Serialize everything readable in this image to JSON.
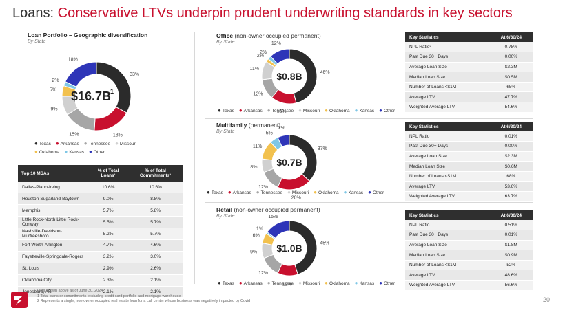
{
  "title": {
    "lead": "Loans:",
    "accent": "Conservative LTVs underpin prudent underwriting standards in key sectors"
  },
  "colors": {
    "Texas": "#2b2b2b",
    "Arkansas": "#c8102e",
    "Tennessee": "#a6a6a6",
    "Missouri": "#d0d0d0",
    "Oklahoma": "#f2c14e",
    "Kansas": "#7fc7e6",
    "Other": "#2e35b8",
    "accent": "#c8102e"
  },
  "portfolio": {
    "heading": "Loan Portfolio – Geographic diversification",
    "subheading": "By State",
    "center_value": "$16.7B",
    "center_sup": "1",
    "legend": [
      "Texas",
      "Arkansas",
      "Tennessee",
      "Missouri",
      "Oklahoma",
      "Kansas",
      "Other"
    ]
  },
  "msa_table": {
    "headers": [
      "Top 10 MSAs",
      "% of Total Loans¹",
      "% of Total Commitments¹"
    ],
    "rows": [
      [
        "Dallas-Plano-Irving",
        "10.6%",
        "10.6%"
      ],
      [
        "Houston-Sugarland-Baytown",
        "9.0%",
        "8.8%"
      ],
      [
        "Memphis",
        "5.7%",
        "5.8%"
      ],
      [
        "Little Rock-North Little Rock-Conway",
        "5.5%",
        "5.7%"
      ],
      [
        "Nashville-Davidson-Murfreesboro",
        "5.2%",
        "5.7%"
      ],
      [
        "Fort Worth-Arlington",
        "4.7%",
        "4.6%"
      ],
      [
        "Fayetteville-Springdale-Rogers",
        "3.2%",
        "3.0%"
      ],
      [
        "St. Louis",
        "2.9%",
        "2.6%"
      ],
      [
        "Oklahoma City",
        "2.3%",
        "2.1%"
      ],
      [
        "Jonesboro, AR",
        "2.1%",
        "2.1%"
      ]
    ]
  },
  "office": {
    "heading": "Office",
    "heading_light": "(non-owner occupied permanent)",
    "subheading": "By State",
    "center_value": "$0.8B",
    "stats_headers": [
      "Key Statistics",
      "At 6/30/24"
    ],
    "stats": [
      [
        "NPL Ratio²",
        "0.78%"
      ],
      [
        "Past Due 30+ Days",
        "0.00%"
      ],
      [
        "Average Loan Size",
        "$2.3M"
      ],
      [
        "Median Loan Size",
        "$0.5M"
      ],
      [
        "Number of Loans <$1M",
        "65%"
      ],
      [
        "Average LTV",
        "47.7%"
      ],
      [
        "Weighted Average LTV",
        "54.6%"
      ]
    ]
  },
  "multifamily": {
    "heading": "Multifamily",
    "heading_light": "(permanent)",
    "subheading": "By State",
    "center_value": "$0.7B",
    "stats_headers": [
      "Key Statistics",
      "At 6/30/24"
    ],
    "stats": [
      [
        "NPL Ratio",
        "0.01%"
      ],
      [
        "Past Due 30+ Days",
        "0.00%"
      ],
      [
        "Average Loan Size",
        "$2.3M"
      ],
      [
        "Median Loan Size",
        "$0.6M"
      ],
      [
        "Number of Loans <$1M",
        "68%"
      ],
      [
        "Average LTV",
        "53.6%"
      ],
      [
        "Weighted Average LTV",
        "63.7%"
      ]
    ]
  },
  "retail": {
    "heading": "Retail",
    "heading_light": "(non-owner occupied permanent)",
    "subheading": "By State",
    "center_value": "$1.0B",
    "stats_headers": [
      "Key Statistics",
      "At 6/30/24"
    ],
    "stats": [
      [
        "NPL Ratio",
        "0.51%"
      ],
      [
        "Past Due 30+ Days",
        "0.01%"
      ],
      [
        "Average Loan Size",
        "$1.8M"
      ],
      [
        "Median Loan Size",
        "$0.9M"
      ],
      [
        "Number of Loans <$1M",
        "52%"
      ],
      [
        "Average LTV",
        "48.6%"
      ],
      [
        "Weighted Average LTV",
        "56.6%"
      ]
    ]
  },
  "chart_data": [
    {
      "type": "pie",
      "title": "Loan Portfolio – Geographic diversification",
      "categories": [
        "Texas",
        "Arkansas",
        "Tennessee",
        "Missouri",
        "Oklahoma",
        "Kansas",
        "Other"
      ],
      "values": [
        33,
        18,
        15,
        9,
        5,
        2,
        18
      ]
    },
    {
      "type": "pie",
      "title": "Office",
      "categories": [
        "Texas",
        "Arkansas",
        "Tennessee",
        "Missouri",
        "Oklahoma",
        "Kansas",
        "Other"
      ],
      "values": [
        46,
        15,
        12,
        11,
        2,
        2,
        12
      ]
    },
    {
      "type": "pie",
      "title": "Multifamily",
      "categories": [
        "Texas",
        "Arkansas",
        "Tennessee",
        "Missouri",
        "Oklahoma",
        "Kansas",
        "Other"
      ],
      "values": [
        37,
        20,
        12,
        8,
        11,
        5,
        7
      ]
    },
    {
      "type": "pie",
      "title": "Retail",
      "categories": [
        "Texas",
        "Arkansas",
        "Tennessee",
        "Missouri",
        "Oklahoma",
        "Kansas",
        "Other"
      ],
      "values": [
        45,
        12,
        12,
        9,
        6,
        1,
        15
      ]
    }
  ],
  "footnotes": {
    "line0": "Data shown above as of June 30, 2024",
    "line1": "1   Total loans or commitments excluding credit card portfolio and mortgage warehouse",
    "line2": "2   Represents a single, non-owner occupied real estate loan for a call center whose business was negatively impacted by Covid"
  },
  "page_number": "20"
}
